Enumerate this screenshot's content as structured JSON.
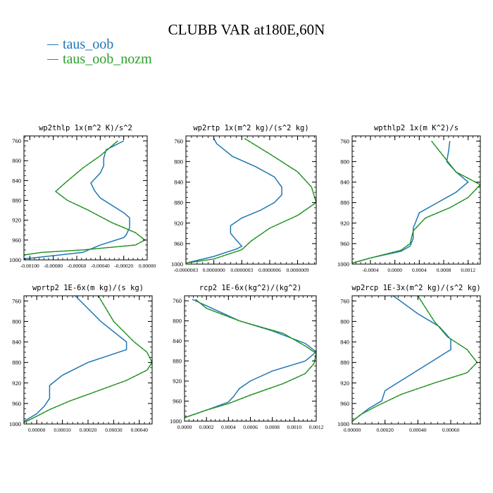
{
  "title": "CLUBB VAR at180E,60N",
  "legend": [
    {
      "label": "taus_oob",
      "color": "#1f77b4"
    },
    {
      "label": "taus_oob_nozm",
      "color": "#2ca02c"
    }
  ],
  "chart_data": [
    {
      "type": "line",
      "title": "wp2thlp   1x(m^2 K)/s^2",
      "yticks": [
        760,
        800,
        840,
        880,
        920,
        960,
        1000
      ],
      "ylim": [
        1000,
        750
      ],
      "xlim": [
        -0.00105,
        0.0
      ],
      "xticks": [
        -0.001,
        -0.0008,
        -0.0006,
        -0.0004,
        -0.0002,
        0.0
      ],
      "xtick_labels": [
        "-0.00100",
        "-0.00080",
        "-0.00060",
        "-0.00040",
        "-0.00020",
        "0.00000"
      ],
      "series": [
        {
          "name": "taus_oob",
          "points": [
            [
              -0.0002,
              760
            ],
            [
              -0.00035,
              778
            ],
            [
              -0.00037,
              795
            ],
            [
              -0.00037,
              810
            ],
            [
              -0.0004,
              825
            ],
            [
              -0.00048,
              845
            ],
            [
              -0.00045,
              860
            ],
            [
              -0.0004,
              875
            ],
            [
              -0.0002,
              905
            ],
            [
              -0.00015,
              915
            ],
            [
              -0.00015,
              935
            ],
            [
              -0.00018,
              950
            ],
            [
              -0.0002,
              955
            ],
            [
              -0.0004,
              970
            ],
            [
              -0.00055,
              985
            ],
            [
              -0.00105,
              998
            ]
          ]
        },
        {
          "name": "taus_oob_nozm",
          "points": [
            [
              -0.00025,
              760
            ],
            [
              -0.0004,
              790
            ],
            [
              -0.00055,
              815
            ],
            [
              -0.0007,
              845
            ],
            [
              -0.00078,
              862
            ],
            [
              -0.00068,
              880
            ],
            [
              -0.0005,
              900
            ],
            [
              -0.0003,
              925
            ],
            [
              -0.0001,
              945
            ],
            [
              -2e-05,
              960
            ],
            [
              -0.0001,
              970
            ],
            [
              -0.00055,
              980
            ],
            [
              -0.0009,
              985
            ],
            [
              -0.00105,
              990
            ]
          ]
        }
      ]
    },
    {
      "type": "line",
      "title": "wp2rtp   1x(m^2 kg)/(s^2 kg)",
      "yticks": [
        760,
        800,
        840,
        880,
        920,
        960,
        1000
      ],
      "ylim": [
        1000,
        750
      ],
      "xlim": [
        -3e-07,
        1.1e-06
      ],
      "xticks": [
        -3e-07,
        0.0,
        3e-07,
        6e-07,
        9e-07
      ],
      "xtick_labels": [
        "-0.0000003",
        "0.0000000",
        "0.0000003",
        "0.0000006",
        "0.0000009"
      ],
      "series": [
        {
          "name": "taus_oob",
          "points": [
            [
              0.0,
              755
            ],
            [
              3e-08,
              765
            ],
            [
              2e-07,
              790
            ],
            [
              4.5e-07,
              810
            ],
            [
              6.5e-07,
              830
            ],
            [
              7.3e-07,
              850
            ],
            [
              7.3e-07,
              865
            ],
            [
              6.5e-07,
              880
            ],
            [
              5e-07,
              895
            ],
            [
              3e-07,
              910
            ],
            [
              1.8e-07,
              925
            ],
            [
              1.8e-07,
              940
            ],
            [
              2.5e-07,
              955
            ],
            [
              3e-07,
              965
            ],
            [
              2.5e-07,
              970
            ],
            [
              0.0,
              985
            ],
            [
              -3e-07,
              998
            ]
          ]
        },
        {
          "name": "taus_oob_nozm",
          "points": [
            [
              3.3e-07,
              755
            ],
            [
              6e-07,
              785
            ],
            [
              9e-07,
              820
            ],
            [
              1.05e-06,
              850
            ],
            [
              1.1e-06,
              880
            ],
            [
              9e-07,
              905
            ],
            [
              6e-07,
              930
            ],
            [
              4e-07,
              955
            ],
            [
              3e-07,
              972
            ],
            [
              0.0,
              990
            ],
            [
              -3e-07,
              998
            ]
          ]
        }
      ]
    },
    {
      "type": "line",
      "title": "wpthlp2   1x(m K^2)/s",
      "yticks": [
        760,
        800,
        840,
        880,
        920,
        960,
        1000
      ],
      "ylim": [
        1000,
        750
      ],
      "xlim": [
        -0.0007,
        0.0014
      ],
      "xticks": [
        -0.0004,
        0.0,
        0.0004,
        0.0008,
        0.0012
      ],
      "xtick_labels": [
        "-0.0004",
        "0.0000",
        "0.0004",
        "0.0008",
        "0.0012"
      ],
      "series": [
        {
          "name": "taus_oob",
          "points": [
            [
              0.0009,
              760
            ],
            [
              0.00088,
              780
            ],
            [
              0.00085,
              800
            ],
            [
              0.001,
              820
            ],
            [
              0.0012,
              840
            ],
            [
              0.001,
              860
            ],
            [
              0.0007,
              880
            ],
            [
              0.0004,
              900
            ],
            [
              0.00035,
              915
            ],
            [
              0.0003,
              930
            ],
            [
              0.0003,
              950
            ],
            [
              0.00025,
              965
            ],
            [
              0.0001,
              975
            ],
            [
              -0.0004,
              988
            ],
            [
              -0.0007,
              998
            ]
          ]
        },
        {
          "name": "taus_oob_nozm",
          "points": [
            [
              0.0006,
              760
            ],
            [
              0.0008,
              790
            ],
            [
              0.001,
              820
            ],
            [
              0.0014,
              845
            ],
            [
              0.0012,
              870
            ],
            [
              0.0009,
              890
            ],
            [
              0.0005,
              910
            ],
            [
              0.0003,
              935
            ],
            [
              0.00025,
              960
            ],
            [
              0.0001,
              973
            ],
            [
              -0.0004,
              988
            ],
            [
              -0.0007,
              998
            ]
          ]
        }
      ]
    },
    {
      "type": "line",
      "title": "wprtp2   1E-6x(m kg)/(s kg)",
      "yticks": [
        760,
        800,
        840,
        880,
        920,
        960,
        1000
      ],
      "ylim": [
        1000,
        750
      ],
      "xlim": [
        -5e-05,
        0.00045
      ],
      "xticks": [
        0.0,
        0.0001,
        0.0002,
        0.0003,
        0.0004
      ],
      "xtick_labels": [
        "0.00000",
        "0.00010",
        "0.00020",
        "0.00030",
        "0.00040"
      ],
      "series": [
        {
          "name": "taus_oob",
          "points": [
            [
              0.00015,
              750
            ],
            [
              0.00025,
              800
            ],
            [
              0.00035,
              840
            ],
            [
              0.00035,
              855
            ],
            [
              0.0002,
              880
            ],
            [
              0.0001,
              905
            ],
            [
              5e-05,
              925
            ],
            [
              5e-05,
              950
            ],
            [
              3e-05,
              965
            ],
            [
              0.0,
              980
            ],
            [
              -5e-05,
              995
            ]
          ]
        },
        {
          "name": "taus_oob_nozm",
          "points": [
            [
              0.00024,
              750
            ],
            [
              0.0003,
              800
            ],
            [
              0.00038,
              840
            ],
            [
              0.00043,
              860
            ],
            [
              0.00045,
              880
            ],
            [
              0.00043,
              895
            ],
            [
              0.00035,
              915
            ],
            [
              0.00024,
              935
            ],
            [
              0.00013,
              955
            ],
            [
              5e-05,
              972
            ],
            [
              -2e-05,
              990
            ],
            [
              -5e-05,
              997
            ]
          ]
        }
      ]
    },
    {
      "type": "line",
      "title": "rcp2   1E-6x(kg^2)/(kg^2)",
      "yticks": [
        760,
        800,
        840,
        880,
        920,
        960,
        1000
      ],
      "ylim": [
        1000,
        750
      ],
      "xlim": [
        0.0,
        0.0012
      ],
      "xticks": [
        0.0,
        0.0002,
        0.0004,
        0.0006,
        0.0008,
        0.001,
        0.0012
      ],
      "xtick_labels": [
        "0.0000",
        "0.0002",
        "0.0004",
        "0.0006",
        "0.0008",
        "0.0010",
        "0.0012"
      ],
      "series": [
        {
          "name": "taus_oob",
          "points": [
            [
              7e-05,
              757
            ],
            [
              0.0002,
              770
            ],
            [
              0.0005,
              800
            ],
            [
              0.0008,
              820
            ],
            [
              0.0011,
              845
            ],
            [
              0.0012,
              862
            ],
            [
              0.0011,
              880
            ],
            [
              0.0008,
              900
            ],
            [
              0.0006,
              920
            ],
            [
              0.0005,
              935
            ],
            [
              0.00045,
              950
            ],
            [
              0.0004,
              962
            ],
            [
              0.0002,
              978
            ],
            [
              0.0,
              993
            ]
          ]
        },
        {
          "name": "taus_oob_nozm",
          "points": [
            [
              0.0001,
              757
            ],
            [
              0.0002,
              775
            ],
            [
              0.0005,
              800
            ],
            [
              0.0009,
              825
            ],
            [
              0.0011,
              850
            ],
            [
              0.0012,
              865
            ],
            [
              0.00118,
              885
            ],
            [
              0.0011,
              905
            ],
            [
              0.0009,
              925
            ],
            [
              0.0006,
              948
            ],
            [
              0.0004,
              965
            ],
            [
              0.0002,
              978
            ],
            [
              0.0,
              993
            ]
          ]
        }
      ]
    },
    {
      "type": "line",
      "title": "wp2rcp   1E-3x(m^2 kg)/(s^2 kg)",
      "yticks": [
        760,
        800,
        840,
        880,
        920,
        960,
        1000
      ],
      "ylim": [
        1000,
        750
      ],
      "xlim": [
        0.0,
        0.00078
      ],
      "xticks": [
        0.0,
        0.0002,
        0.0004,
        0.0006
      ],
      "xtick_labels": [
        "0.00000",
        "0.00020",
        "0.00040",
        "0.00060"
      ],
      "series": [
        {
          "name": "taus_oob",
          "points": [
            [
              0.00025,
              750
            ],
            [
              0.0004,
              785
            ],
            [
              0.00053,
              810
            ],
            [
              0.0006,
              835
            ],
            [
              0.0006,
              855
            ],
            [
              0.0005,
              875
            ],
            [
              0.0004,
              895
            ],
            [
              0.0003,
              915
            ],
            [
              0.0002,
              935
            ],
            [
              0.00018,
              955
            ],
            [
              0.0001,
              970
            ],
            [
              4e-05,
              985
            ],
            [
              0.0,
              995
            ]
          ]
        },
        {
          "name": "taus_oob_nozm",
          "points": [
            [
              0.0004,
              750
            ],
            [
              0.0005,
              800
            ],
            [
              0.00058,
              830
            ],
            [
              0.0007,
              855
            ],
            [
              0.00076,
              880
            ],
            [
              0.0007,
              900
            ],
            [
              0.0005,
              920
            ],
            [
              0.0003,
              942
            ],
            [
              0.00015,
              965
            ],
            [
              5e-05,
              982
            ],
            [
              0.0,
              995
            ]
          ]
        }
      ]
    }
  ]
}
